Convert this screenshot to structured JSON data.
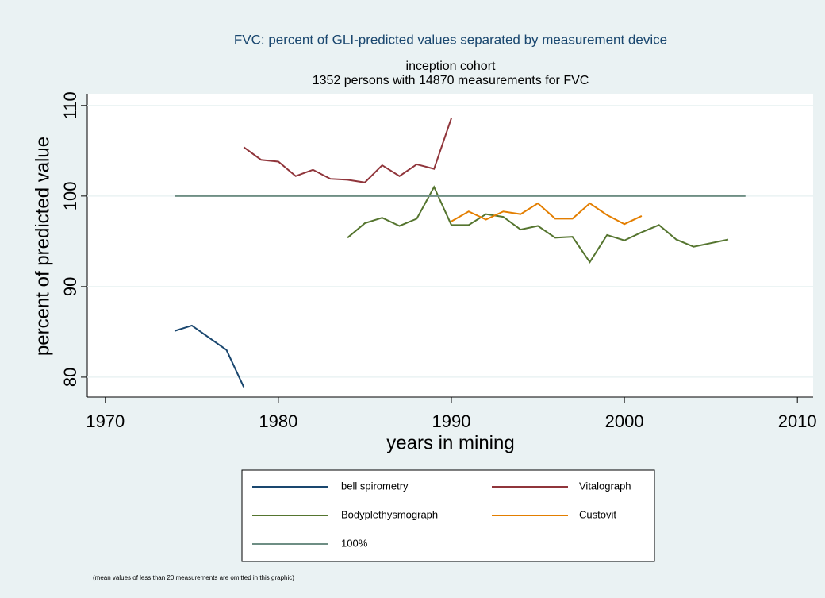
{
  "chart_data": {
    "type": "line",
    "title": "FVC: percent of GLI-predicted values separated by measurement device",
    "subtitle": [
      "inception cohort",
      "1352 persons with 14870 measurements for FVC"
    ],
    "x_label": "years in mining",
    "y_label": "percent of predicted value",
    "note": "(mean values of less than 20 measurements are omitted in this graphic)",
    "xlim": [
      1969,
      2011
    ],
    "xticks": [
      1970,
      1980,
      1990,
      2000,
      2010
    ],
    "ylim": [
      77.8,
      111.3
    ],
    "yticks": [
      80,
      90,
      100,
      110
    ],
    "grid": true,
    "legend": "bottom",
    "series": [
      {
        "name": "bell spirometry",
        "color": "#1a476f",
        "x": [
          1974,
          1975,
          1977,
          1978
        ],
        "values": [
          85.1,
          85.7,
          83.0,
          78.9
        ]
      },
      {
        "name": "Vitalograph",
        "color": "#90353b",
        "x": [
          1978,
          1979,
          1980,
          1981,
          1982,
          1983,
          1984,
          1985,
          1986,
          1987,
          1988,
          1989,
          1990
        ],
        "values": [
          105.4,
          104.0,
          103.8,
          102.2,
          102.9,
          101.9,
          101.8,
          101.5,
          103.4,
          102.2,
          103.5,
          103.0,
          108.6
        ]
      },
      {
        "name": "Bodyplethysmograph",
        "color": "#55752f",
        "x": [
          1984,
          1985,
          1986,
          1987,
          1988,
          1989,
          1990,
          1991,
          1992,
          1993,
          1994,
          1995,
          1996,
          1997,
          1998,
          1999,
          2000,
          2001,
          2002,
          2003,
          2004,
          2006
        ],
        "values": [
          95.4,
          97.0,
          97.6,
          96.7,
          97.5,
          101.0,
          96.8,
          96.8,
          98.0,
          97.7,
          96.3,
          96.7,
          95.4,
          95.5,
          92.7,
          95.7,
          95.1,
          96.0,
          96.8,
          95.2,
          94.4,
          95.2
        ]
      },
      {
        "name": "Custovit",
        "color": "#e37e00",
        "x": [
          1990,
          1991,
          1992,
          1993,
          1994,
          1995,
          1996,
          1997,
          1998,
          1999,
          2000,
          2001
        ],
        "values": [
          97.2,
          98.3,
          97.4,
          98.3,
          98.0,
          99.2,
          97.5,
          97.5,
          99.2,
          97.9,
          96.9,
          97.8
        ]
      },
      {
        "name": "100%",
        "color": "#6e8e84",
        "x": [
          1974,
          2007
        ],
        "values": [
          100,
          100
        ]
      }
    ]
  }
}
